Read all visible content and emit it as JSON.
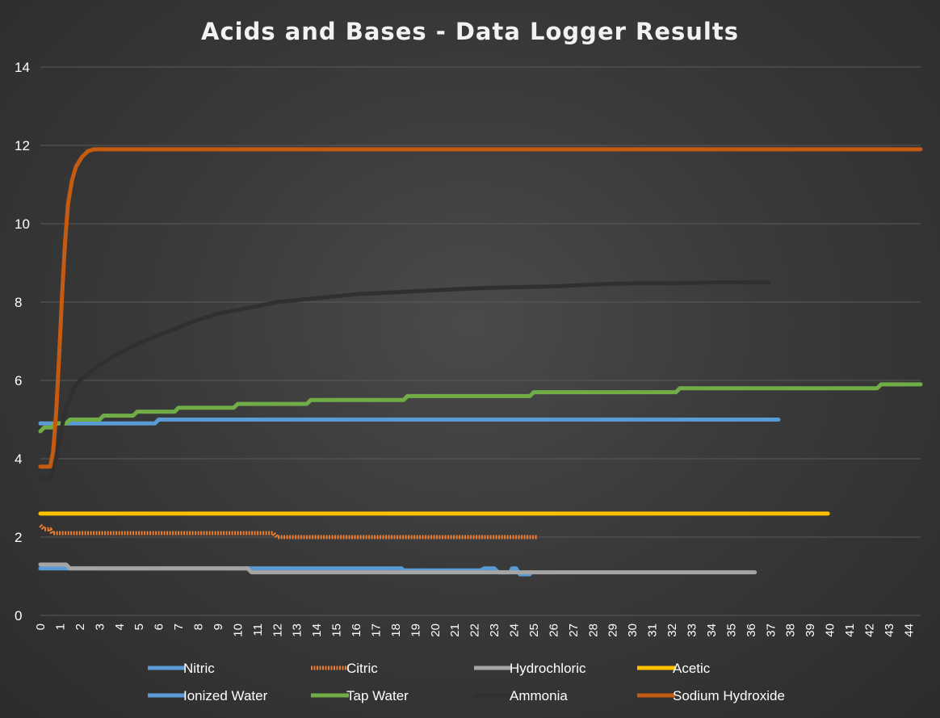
{
  "chart_data": {
    "type": "line",
    "title": "Acids and Bases - Data Logger Results",
    "xlabel": "",
    "ylabel": "",
    "xlim": [
      0,
      44.6
    ],
    "ylim": [
      0,
      14
    ],
    "y_ticks": [
      0,
      2,
      4,
      6,
      8,
      10,
      12,
      14
    ],
    "x_ticks": [
      "0",
      "1",
      "2",
      "3",
      "4",
      "5",
      "6",
      "7",
      "8",
      "9",
      "10",
      "11",
      "12",
      "13",
      "14",
      "15",
      "16",
      "17",
      "18",
      "19",
      "20",
      "21",
      "22",
      "23",
      "24",
      "25",
      "26",
      "27",
      "28",
      "29",
      "30",
      "31",
      "32",
      "33",
      "34",
      "35",
      "36",
      "37",
      "38",
      "39",
      "40",
      "41",
      "42",
      "43",
      "44"
    ],
    "grid": "horizontal",
    "legend_position": "bottom",
    "series": [
      {
        "name": "Nitric",
        "color": "#5b9bd5",
        "dashed": false,
        "points": [
          [
            0,
            1.2
          ],
          [
            18.3,
            1.2
          ],
          [
            18.4,
            1.15
          ],
          [
            22.3,
            1.15
          ],
          [
            22.5,
            1.2
          ],
          [
            23,
            1.2
          ],
          [
            23.2,
            1.1
          ],
          [
            23.8,
            1.1
          ],
          [
            23.9,
            1.2
          ],
          [
            24.1,
            1.2
          ],
          [
            24.3,
            1.05
          ],
          [
            24.8,
            1.05
          ]
        ]
      },
      {
        "name": "Citric",
        "color": "#ed7d31",
        "dashed": true,
        "points": [
          [
            0,
            2.3
          ],
          [
            0.2,
            2.2
          ],
          [
            0.5,
            2.2
          ],
          [
            0.6,
            2.1
          ],
          [
            11.8,
            2.1
          ],
          [
            12,
            2.0
          ],
          [
            25.2,
            2.0
          ]
        ]
      },
      {
        "name": "Hydrochloric",
        "color": "#a5a5a5",
        "dashed": false,
        "points": [
          [
            0,
            1.3
          ],
          [
            1.3,
            1.3
          ],
          [
            1.5,
            1.2
          ],
          [
            10.5,
            1.2
          ],
          [
            10.7,
            1.1
          ],
          [
            36.2,
            1.1
          ]
        ]
      },
      {
        "name": "Acetic",
        "color": "#ffc000",
        "dashed": false,
        "points": [
          [
            0,
            2.6
          ],
          [
            39.9,
            2.6
          ]
        ]
      },
      {
        "name": "Ionized Water",
        "color": "#5b9bd5",
        "dashed": false,
        "points": [
          [
            0,
            4.9
          ],
          [
            5.8,
            4.9
          ],
          [
            6,
            5.0
          ],
          [
            37.4,
            5.0
          ]
        ]
      },
      {
        "name": "Tap Water",
        "color": "#70ad47",
        "dashed": false,
        "points": [
          [
            0,
            4.7
          ],
          [
            0.2,
            4.8
          ],
          [
            0.6,
            4.8
          ],
          [
            0.7,
            4.9
          ],
          [
            1.3,
            4.9
          ],
          [
            1.5,
            5.0
          ],
          [
            3,
            5.0
          ],
          [
            3.2,
            5.1
          ],
          [
            4.7,
            5.1
          ],
          [
            4.9,
            5.2
          ],
          [
            6.8,
            5.2
          ],
          [
            7,
            5.3
          ],
          [
            9.8,
            5.3
          ],
          [
            10,
            5.4
          ],
          [
            13.5,
            5.4
          ],
          [
            13.7,
            5.5
          ],
          [
            18.4,
            5.5
          ],
          [
            18.6,
            5.6
          ],
          [
            24.8,
            5.6
          ],
          [
            25,
            5.7
          ],
          [
            32.2,
            5.7
          ],
          [
            32.4,
            5.8
          ],
          [
            42.4,
            5.8
          ],
          [
            42.6,
            5.9
          ],
          [
            44.6,
            5.9
          ]
        ]
      },
      {
        "name": "Ammonia",
        "color": "#303030",
        "dashed": false,
        "points": [
          [
            0,
            3.5
          ],
          [
            0.5,
            3.5
          ],
          [
            0.8,
            4.0
          ],
          [
            1,
            4.6
          ],
          [
            1.3,
            5.3
          ],
          [
            1.7,
            5.8
          ],
          [
            2,
            6.0
          ],
          [
            2.5,
            6.2
          ],
          [
            3,
            6.4
          ],
          [
            3.5,
            6.55
          ],
          [
            4,
            6.7
          ],
          [
            5,
            6.95
          ],
          [
            6,
            7.15
          ],
          [
            7,
            7.35
          ],
          [
            8,
            7.55
          ],
          [
            9,
            7.7
          ],
          [
            10,
            7.8
          ],
          [
            11,
            7.9
          ],
          [
            12,
            8.0
          ],
          [
            13,
            8.05
          ],
          [
            14,
            8.1
          ],
          [
            16,
            8.2
          ],
          [
            18,
            8.25
          ],
          [
            20,
            8.3
          ],
          [
            22,
            8.35
          ],
          [
            24,
            8.38
          ],
          [
            26,
            8.4
          ],
          [
            28,
            8.45
          ],
          [
            30,
            8.48
          ],
          [
            32,
            8.48
          ],
          [
            34,
            8.5
          ],
          [
            36,
            8.5
          ],
          [
            36.9,
            8.5
          ]
        ]
      },
      {
        "name": "Sodium Hydroxide",
        "color": "#c55a11",
        "dashed": false,
        "points": [
          [
            0,
            3.8
          ],
          [
            0.5,
            3.8
          ],
          [
            0.65,
            4.2
          ],
          [
            0.8,
            5.2
          ],
          [
            0.95,
            6.6
          ],
          [
            1.1,
            8.2
          ],
          [
            1.25,
            9.5
          ],
          [
            1.4,
            10.5
          ],
          [
            1.6,
            11.1
          ],
          [
            1.8,
            11.45
          ],
          [
            2.1,
            11.7
          ],
          [
            2.4,
            11.85
          ],
          [
            2.7,
            11.9
          ],
          [
            44.6,
            11.9
          ]
        ]
      }
    ]
  }
}
